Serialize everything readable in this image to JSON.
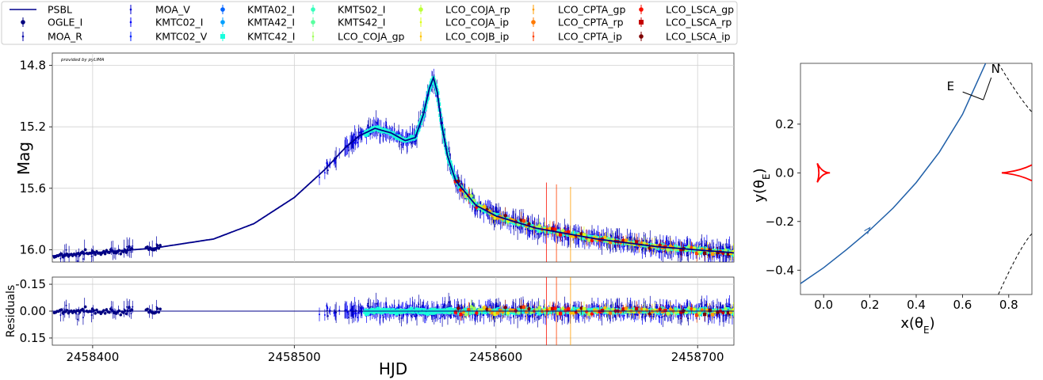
{
  "chart_data": [
    {
      "type": "scatter",
      "panel": "lightcurve",
      "annotation": "provided by pyLIMA",
      "ylabel": "Mag",
      "xlim": [
        2458380,
        2458718
      ],
      "ylim": [
        16.08,
        14.72
      ],
      "yticks": [
        14.8,
        15.2,
        15.6,
        16.0
      ],
      "ytick_labels": [
        "14.8",
        "15.2",
        "15.6",
        "16.0"
      ],
      "xticks": [
        2458400,
        2458500,
        2458600,
        2458700
      ],
      "grid": true,
      "legend_position": "top",
      "model": {
        "name": "PSBL",
        "color": "#00008b",
        "x": [
          2458380,
          2458430,
          2458460,
          2458480,
          2458500,
          2458515,
          2458525,
          2458532,
          2458540,
          2458548,
          2458555,
          2458560,
          2458564,
          2458567,
          2458569,
          2458571,
          2458573,
          2458576,
          2458580,
          2458590,
          2458600,
          2458620,
          2458650,
          2458680,
          2458718
        ],
        "y": [
          16.04,
          15.99,
          15.93,
          15.83,
          15.66,
          15.48,
          15.34,
          15.26,
          15.21,
          15.24,
          15.29,
          15.27,
          15.12,
          14.95,
          14.88,
          14.98,
          15.18,
          15.39,
          15.55,
          15.71,
          15.78,
          15.86,
          15.93,
          15.98,
          16.02
        ]
      },
      "series": [
        {
          "name": "OGLE_I",
          "color": "#00007f",
          "marker": "o"
        },
        {
          "name": "MOA_R",
          "color": "#0000a8",
          "marker": "."
        },
        {
          "name": "MOA_V",
          "color": "#0000d1",
          "marker": "."
        },
        {
          "name": "KMTC02_I",
          "color": "#0000fa",
          "marker": "."
        },
        {
          "name": "KMTC02_V",
          "color": "#0020ff",
          "marker": "."
        },
        {
          "name": "KMTA02_I",
          "color": "#0064ff",
          "marker": "o"
        },
        {
          "name": "KMTA42_I",
          "color": "#00a0ff",
          "marker": "o"
        },
        {
          "name": "KMTC42_I",
          "color": "#18ffdd",
          "marker": "s"
        },
        {
          "name": "KMTS02_I",
          "color": "#39ffbd",
          "marker": "o"
        },
        {
          "name": "KMTS42_I",
          "color": "#5affa0",
          "marker": "o"
        },
        {
          "name": "LCO_COJA_gp",
          "color": "#a0ff5a",
          "marker": "."
        },
        {
          "name": "LCO_COJA_rp",
          "color": "#bdff39",
          "marker": "o"
        },
        {
          "name": "LCO_COJA_ip",
          "color": "#ddff18",
          "marker": "."
        },
        {
          "name": "LCO_COJB_ip",
          "color": "#ffc400",
          "marker": "."
        },
        {
          "name": "LCO_CPTA_gp",
          "color": "#ff9d00",
          "marker": "."
        },
        {
          "name": "LCO_CPTA_rp",
          "color": "#ff7a00",
          "marker": "o"
        },
        {
          "name": "LCO_CPTA_ip",
          "color": "#ff3f00",
          "marker": "."
        },
        {
          "name": "LCO_LSCA_gp",
          "color": "#fa0f00",
          "marker": "o"
        },
        {
          "name": "LCO_LSCA_rp",
          "color": "#c40000",
          "marker": "s"
        },
        {
          "name": "LCO_LSCA_ip",
          "color": "#7f0000",
          "marker": "o"
        }
      ]
    },
    {
      "type": "scatter",
      "panel": "residuals",
      "ylabel": "Residuals",
      "xlabel": "HJD",
      "xlim": [
        2458380,
        2458718
      ],
      "ylim": [
        0.19,
        -0.19
      ],
      "yticks": [
        -0.15,
        0.0,
        0.15
      ],
      "ytick_labels": [
        "-0.15",
        "0.00",
        "0.15"
      ],
      "xticks": [
        2458400,
        2458500,
        2458600,
        2458700
      ],
      "xtick_labels": [
        "2458400",
        "2458500",
        "2458600",
        "2458700"
      ],
      "grid": true
    },
    {
      "type": "line",
      "panel": "geometry",
      "xlabel": "x(θE)",
      "ylabel": "y(θE)",
      "xlim": [
        -0.1,
        0.9
      ],
      "ylim": [
        -0.5,
        0.45
      ],
      "xticks": [
        0.0,
        0.2,
        0.4,
        0.6,
        0.8
      ],
      "xtick_labels": [
        "0.0",
        "0.2",
        "0.4",
        "0.6",
        "0.8"
      ],
      "yticks": [
        -0.4,
        -0.2,
        0.0,
        0.2
      ],
      "ytick_labels": [
        "−0.4",
        "−0.2",
        "0.0",
        "0.2"
      ],
      "compass_labels": [
        "N",
        "E"
      ],
      "source_trajectory": {
        "color": "#1f5fa8",
        "x": [
          -0.1,
          0.0,
          0.1,
          0.2,
          0.3,
          0.4,
          0.5,
          0.6,
          0.7
        ],
        "y": [
          -0.455,
          -0.39,
          -0.315,
          -0.235,
          -0.145,
          -0.04,
          0.085,
          0.24,
          0.45
        ]
      },
      "caustics": {
        "color": "#ff0000",
        "left_center": [
          0.0,
          0.0
        ],
        "right_center": [
          0.9,
          0.0
        ]
      },
      "critical_curve": {
        "color": "#000000",
        "style": "dashed"
      }
    }
  ],
  "layout_labels": {
    "legend_title_model": "PSBL"
  }
}
